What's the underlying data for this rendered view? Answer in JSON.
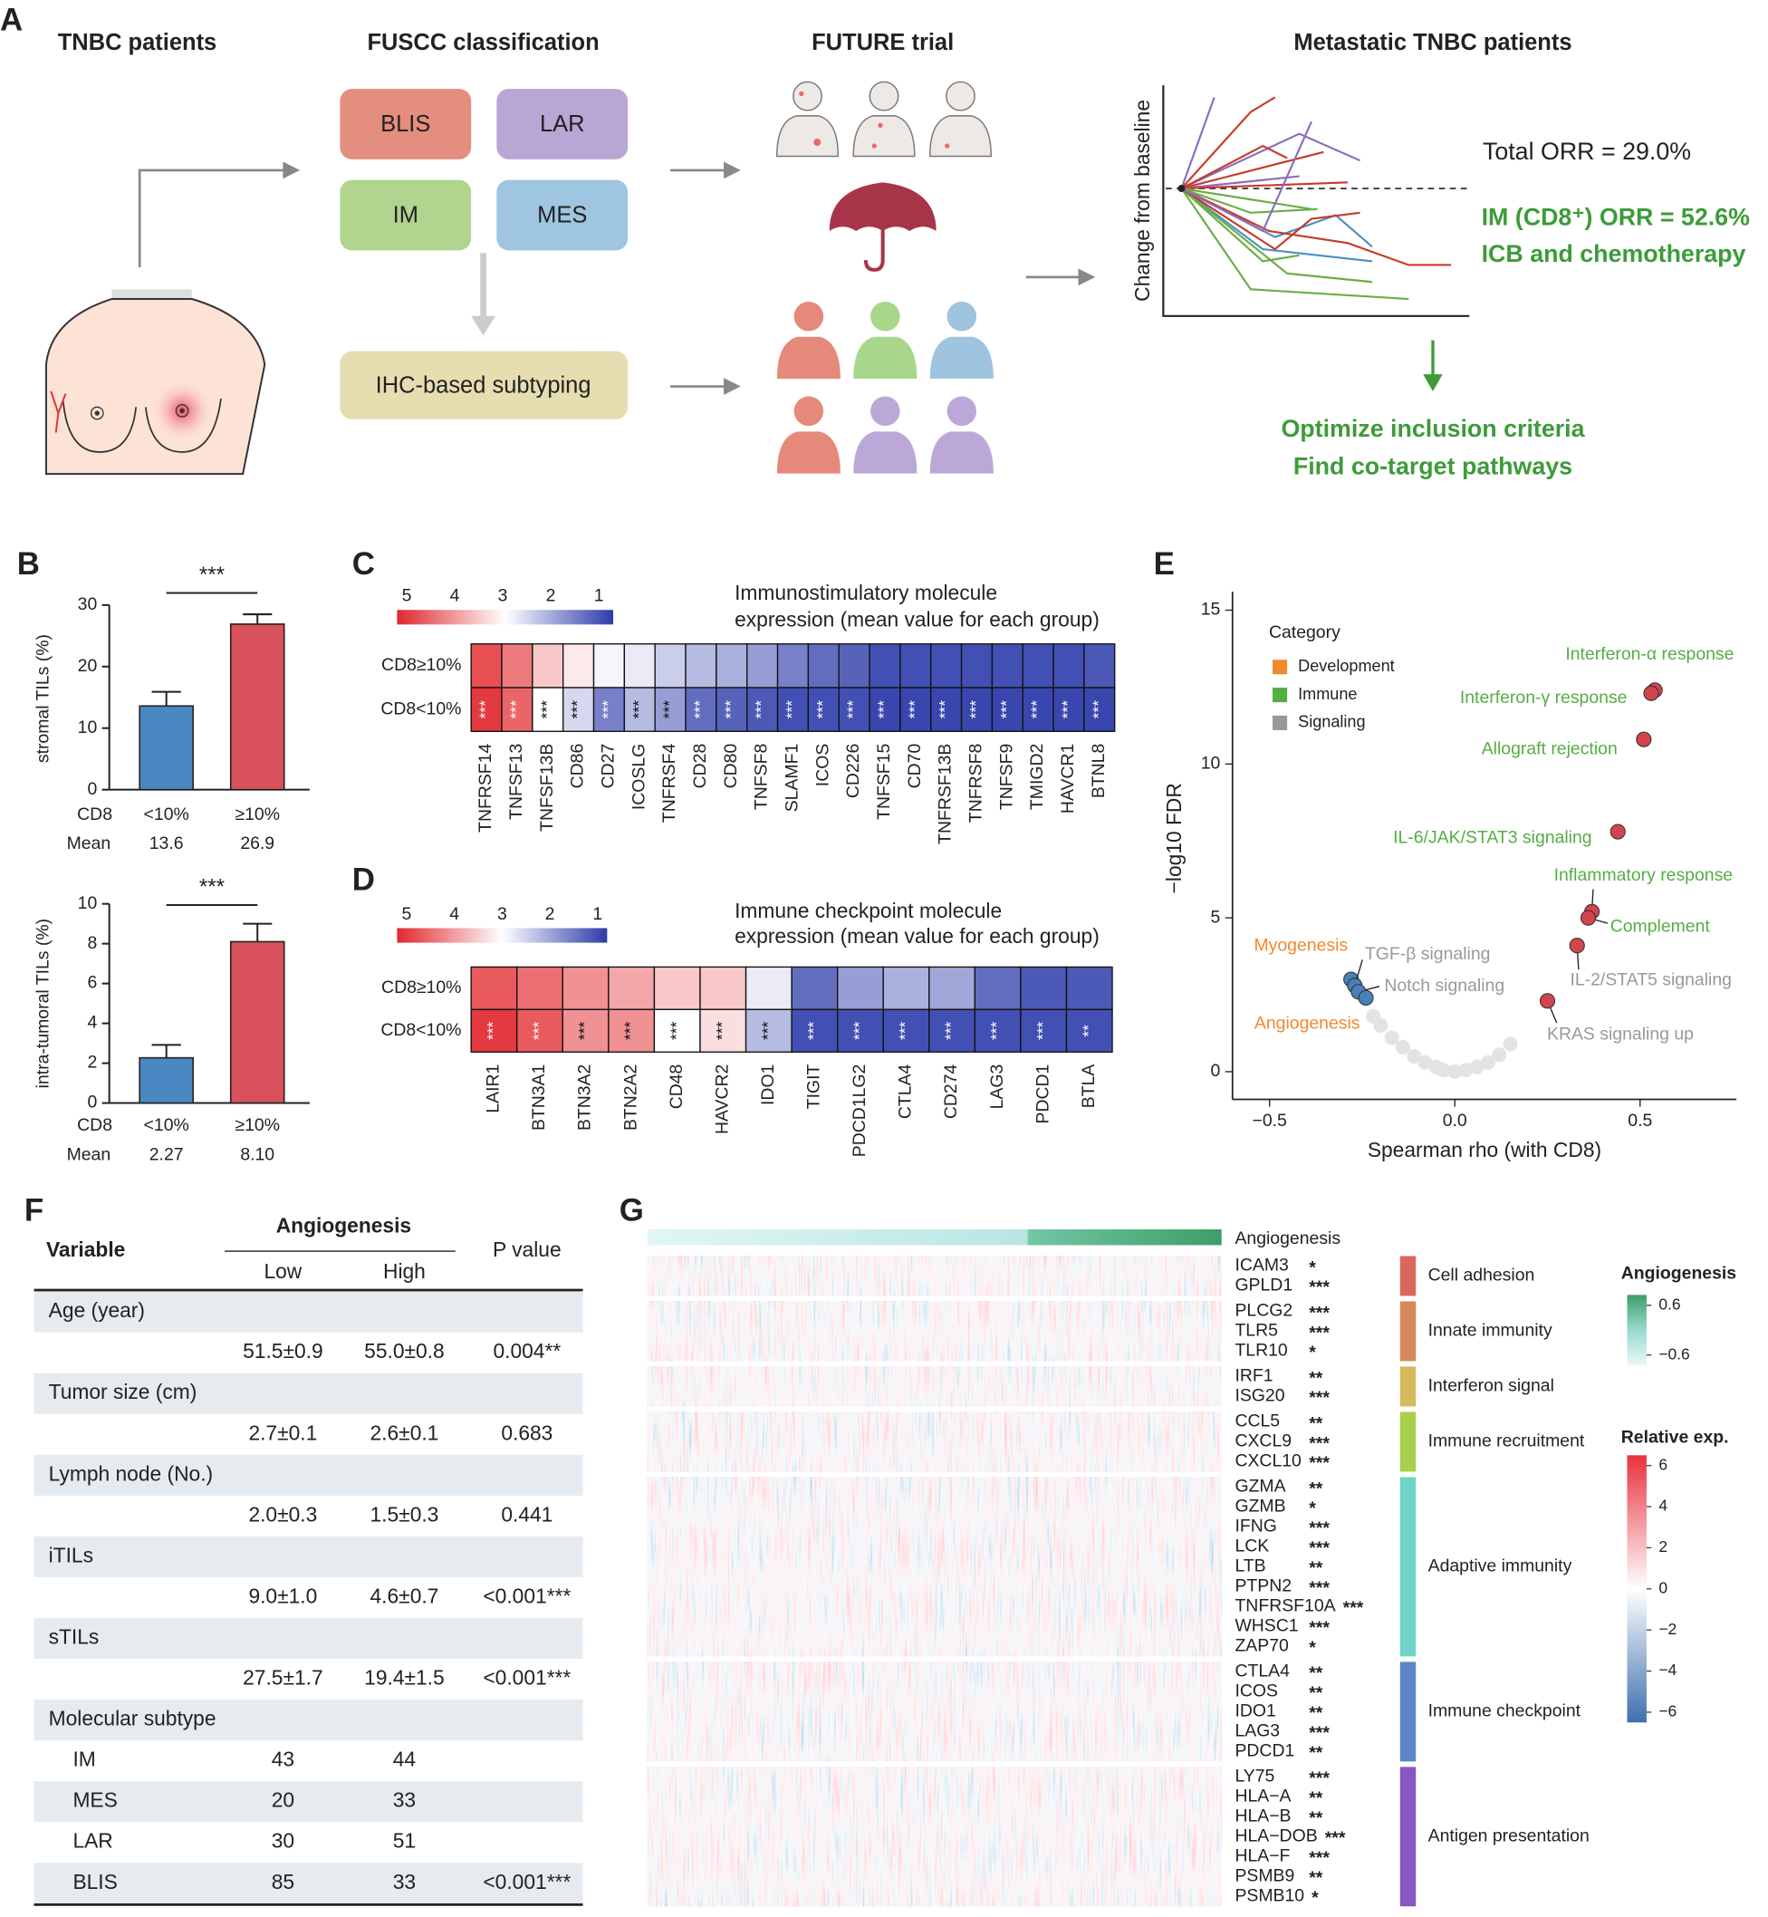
{
  "panel_a": {
    "label": "A",
    "headings": [
      "TNBC patients",
      "FUSCC classification",
      "FUTURE trial",
      "Metastatic TNBC patients"
    ],
    "subtypes": [
      "BLIS",
      "LAR",
      "IM",
      "MES"
    ],
    "ihc": "IHC-based subtyping",
    "y_label": "Change from baseline",
    "total_orr": "Total ORR = 29.0%",
    "im_orr": "IM (CD8⁺) ORR = 52.6%",
    "im_treatment": "ICB and chemotherapy",
    "conclusions": [
      "Optimize inclusion criteria",
      "Find co-target pathways"
    ]
  },
  "chart_data": [
    {
      "type": "bar",
      "panel": "B",
      "significance": "***",
      "y_label": "stromal TILs (%)",
      "x_label": "CD8",
      "mean_label": "Mean",
      "categories": [
        "<10%",
        "≥10%"
      ],
      "values": [
        13.6,
        26.9
      ],
      "errors": [
        2.3,
        1.6
      ],
      "colors": [
        "#4b88c2",
        "#d9525b"
      ],
      "ylim": [
        0,
        30
      ],
      "yticks": [
        0,
        10,
        20,
        30
      ]
    },
    {
      "type": "bar",
      "significance": "***",
      "y_label": "intra-tumoral TILs (%)",
      "x_label": "CD8",
      "mean_label": "Mean",
      "categories": [
        "<10%",
        "≥10%"
      ],
      "values": [
        2.27,
        8.1
      ],
      "value_labels": [
        "2.27",
        "8.10"
      ],
      "errors": [
        0.65,
        0.9
      ],
      "colors": [
        "#4b88c2",
        "#d9525b"
      ],
      "ylim": [
        0,
        10
      ],
      "yticks": [
        0,
        2,
        4,
        6,
        8,
        10
      ]
    },
    {
      "type": "heatmap",
      "panel": "C",
      "title": [
        "Immunostimulatory molecule",
        "expression (mean value for each group)"
      ],
      "rows": [
        "CD8≥10%",
        "CD8<10%"
      ],
      "columns": [
        "TNFRSF14",
        "TNFSF13",
        "TNFSF13B",
        "CD86",
        "CD27",
        "ICOSLG",
        "TNFRSF4",
        "CD28",
        "CD80",
        "TNFSF8",
        "SLAMF1",
        "ICOS",
        "CD226",
        "TNFSF15",
        "CD70",
        "TNFRSF13B",
        "TNFRSF8",
        "TNFSF9",
        "TMIGD2",
        "HAVCR1",
        "BTNL8"
      ],
      "values": [
        [
          4.6,
          4.2,
          3.5,
          3.2,
          2.9,
          2.8,
          2.5,
          2.3,
          2.2,
          2.0,
          1.7,
          1.5,
          1.4,
          1.2,
          1.2,
          1.2,
          1.2,
          1.2,
          1.2,
          1.2,
          1.3
        ],
        [
          4.8,
          4.4,
          3.0,
          2.6,
          1.7,
          2.3,
          2.0,
          1.5,
          1.4,
          1.3,
          1.2,
          1.2,
          1.2,
          1.1,
          1.1,
          1.1,
          1.1,
          1.1,
          1.1,
          1.1,
          1.1
        ]
      ],
      "significance": [
        "***",
        "***",
        "***",
        "***",
        "***",
        "***",
        "***",
        "***",
        "***",
        "***",
        "***",
        "***",
        "***",
        "***",
        "***",
        "***",
        "***",
        "***",
        "***",
        "***",
        "***"
      ],
      "colorbar_ticks": [
        5,
        4,
        3,
        2,
        1
      ],
      "colorbar_lim": [
        5.2,
        0.7
      ]
    },
    {
      "type": "heatmap",
      "panel": "D",
      "title": [
        "Immune checkpoint molecule",
        "expression (mean value for each group)"
      ],
      "rows": [
        "CD8≥10%",
        "CD8<10%"
      ],
      "columns": [
        "LAIR1",
        "BTN3A1",
        "BTN3A2",
        "BTN2A2",
        "CD48",
        "HAVCR2",
        "IDO1",
        "TIGIT",
        "PDCD1LG2",
        "CTLA4",
        "CD274",
        "LAG3",
        "PDCD1",
        "BTLA"
      ],
      "values": [
        [
          4.5,
          4.3,
          4.0,
          3.8,
          3.5,
          3.5,
          2.8,
          1.5,
          2.0,
          2.2,
          2.1,
          1.5,
          1.3,
          1.3
        ],
        [
          4.8,
          4.5,
          4.0,
          4.0,
          3.0,
          3.3,
          2.3,
          1.2,
          1.2,
          1.2,
          1.2,
          1.2,
          1.2,
          1.2
        ]
      ],
      "significance": [
        "***",
        "***",
        "***",
        "***",
        "***",
        "***",
        "***",
        "***",
        "***",
        "***",
        "***",
        "***",
        "***",
        "**"
      ],
      "colorbar_ticks": [
        5,
        4,
        3,
        2,
        1
      ],
      "colorbar_lim": [
        5.2,
        0.8
      ]
    },
    {
      "type": "scatter",
      "panel": "E",
      "x_label": "Spearman rho (with CD8)",
      "y_label": "−log10 FDR",
      "legend_title": "Category",
      "categories": [
        {
          "name": "Development",
          "color": "#f0892f"
        },
        {
          "name": "Immune",
          "color": "#55ad44"
        },
        {
          "name": "Signaling",
          "color": "#999999"
        }
      ],
      "xlim": [
        -0.6,
        0.76
      ],
      "ylim": [
        -0.9,
        15.6
      ],
      "xticks": [
        {
          "value": -0.5,
          "label": "−0.5"
        },
        {
          "value": 0,
          "label": "0.0"
        },
        0.5
      ],
      "yticks": [
        0,
        5,
        10,
        15
      ],
      "labeled_points": [
        {
          "label": "Interferon-α response",
          "category": "Immune",
          "x": 0.54,
          "y": 12.4,
          "color": "#d2444e"
        },
        {
          "label": "Interferon-γ response",
          "category": "Immune",
          "x": 0.53,
          "y": 12.3,
          "color": "#d2444e"
        },
        {
          "label": "Allograft rejection",
          "category": "Immune",
          "x": 0.51,
          "y": 10.8,
          "color": "#d2444e"
        },
        {
          "label": "IL-6/JAK/STAT3 signaling",
          "category": "Immune",
          "x": 0.44,
          "y": 7.8,
          "color": "#d2444e"
        },
        {
          "label": "Inflammatory response",
          "category": "Immune",
          "x": 0.37,
          "y": 5.2,
          "color": "#d2444e"
        },
        {
          "label": "Complement",
          "category": "Immune",
          "x": 0.36,
          "y": 5.0,
          "color": "#d2444e"
        },
        {
          "label": "IL-2/STAT5 signaling",
          "category": "Signaling",
          "x": 0.33,
          "y": 4.1,
          "color": "#d2444e"
        },
        {
          "label": "KRAS signaling up",
          "category": "Signaling",
          "x": 0.25,
          "y": 2.3,
          "color": "#d2444e"
        },
        {
          "label": "Myogenesis",
          "category": "Development",
          "x": -0.28,
          "y": 3.0,
          "color": "#4a7fb8"
        },
        {
          "label": "TGF-β signaling",
          "category": "Signaling",
          "x": -0.27,
          "y": 2.8,
          "color": "#4a7fb8"
        },
        {
          "label": "Notch signaling",
          "category": "Signaling",
          "x": -0.26,
          "y": 2.6,
          "color": "#4a7fb8"
        },
        {
          "label": "Angiogenesis",
          "category": "Development",
          "x": -0.24,
          "y": 2.4,
          "color": "#4a7fb8"
        }
      ],
      "other_points": {
        "x": [
          -0.22,
          -0.2,
          -0.17,
          -0.14,
          -0.11,
          -0.08,
          -0.05,
          -0.03,
          0.0,
          0.03,
          0.06,
          0.09,
          0.12,
          0.15
        ],
        "y": [
          1.8,
          1.5,
          1.1,
          0.8,
          0.5,
          0.3,
          0.15,
          0.05,
          0.0,
          0.05,
          0.15,
          0.3,
          0.55,
          0.9
        ],
        "color": "#e3e3e3"
      }
    }
  ],
  "table_f": {
    "panel": "F",
    "header": {
      "variable": "Variable",
      "group": "Angiogenesis",
      "low": "Low",
      "high": "High",
      "p": "P value"
    },
    "rows": [
      {
        "label": "Age (year)"
      },
      {
        "values": [
          "51.5±0.9",
          "55.0±0.8",
          "0.004**"
        ]
      },
      {
        "label": "Tumor size (cm)"
      },
      {
        "values": [
          "2.7±0.1",
          "2.6±0.1",
          "0.683"
        ]
      },
      {
        "label": "Lymph node (No.)"
      },
      {
        "values": [
          "2.0±0.3",
          "1.5±0.3",
          "0.441"
        ]
      },
      {
        "label": "iTILs"
      },
      {
        "values": [
          "9.0±1.0",
          "4.6±0.7",
          "<0.001***"
        ]
      },
      {
        "label": "sTILs"
      },
      {
        "values": [
          "27.5±1.7",
          "19.4±1.5",
          "<0.001***"
        ]
      },
      {
        "label": "Molecular subtype"
      },
      {
        "label": "IM",
        "values": [
          43,
          44
        ]
      },
      {
        "label": "MES",
        "values": [
          20,
          33
        ]
      },
      {
        "label": "LAR",
        "values": [
          30,
          51
        ]
      },
      {
        "label": "BLIS",
        "values": [
          85,
          33,
          "<0.001***"
        ]
      }
    ]
  },
  "panel_g": {
    "panel": "G",
    "annotation": "Angiogenesis",
    "groups": [
      {
        "name": "Cell adhesion",
        "color": "#d9685c",
        "genes": [
          "ICAM3",
          "GPLD1"
        ],
        "significance": [
          "*",
          "***"
        ]
      },
      {
        "name": "Innate immunity",
        "color": "#d8895a",
        "genes": [
          "PLCG2",
          "TLR5",
          "TLR10"
        ],
        "significance": [
          "***",
          "***",
          "*"
        ]
      },
      {
        "name": "Interferon signal",
        "color": "#d6b95c",
        "genes": [
          "IRF1",
          "ISG20"
        ],
        "significance": [
          "**",
          "***"
        ]
      },
      {
        "name": "Immune recruitment",
        "color": "#a9cf4e",
        "genes": [
          "CCL5",
          "CXCL9",
          "CXCL10"
        ],
        "significance": [
          "**",
          "***",
          "***"
        ]
      },
      {
        "name": "Adaptive immunity",
        "color": "#70d4c9",
        "genes": [
          "GZMA",
          "GZMB",
          "IFNG",
          "LCK",
          "LTB",
          "PTPN2",
          "TNFRSF10A",
          "WHSC1",
          "ZAP70"
        ],
        "significance": [
          "**",
          "*",
          "***",
          "***",
          "**",
          "***",
          "***",
          "***",
          "*"
        ]
      },
      {
        "name": "Immune checkpoint",
        "color": "#5c86c6",
        "genes": [
          "CTLA4",
          "ICOS",
          "IDO1",
          "LAG3",
          "PDCD1"
        ],
        "significance": [
          "**",
          "**",
          "**",
          "***",
          "**"
        ]
      },
      {
        "name": "Antigen presentation",
        "color": "#8a56c0",
        "genes": [
          "LY75",
          "HLA−A",
          "HLA−B",
          "HLA−DOB",
          "HLA−F",
          "PSMB9",
          "PSMB10"
        ],
        "significance": [
          "***",
          "**",
          "**",
          "***",
          "***",
          "**",
          "*"
        ]
      }
    ],
    "annotation_legend": {
      "title": "Angiogenesis",
      "lim": [
        -0.85,
        0.85
      ],
      "ticks": [
        0.6,
        {
          "value": -0.6,
          "label": "−0.6"
        }
      ]
    },
    "expression_legend": {
      "title": "Relative exp.",
      "lim": [
        -6.5,
        6.5
      ],
      "ticks": [
        6,
        4,
        2,
        0,
        {
          "value": -2,
          "label": "−2"
        },
        {
          "value": -4,
          "label": "−4"
        },
        {
          "value": -6,
          "label": "−6"
        }
      ]
    }
  }
}
